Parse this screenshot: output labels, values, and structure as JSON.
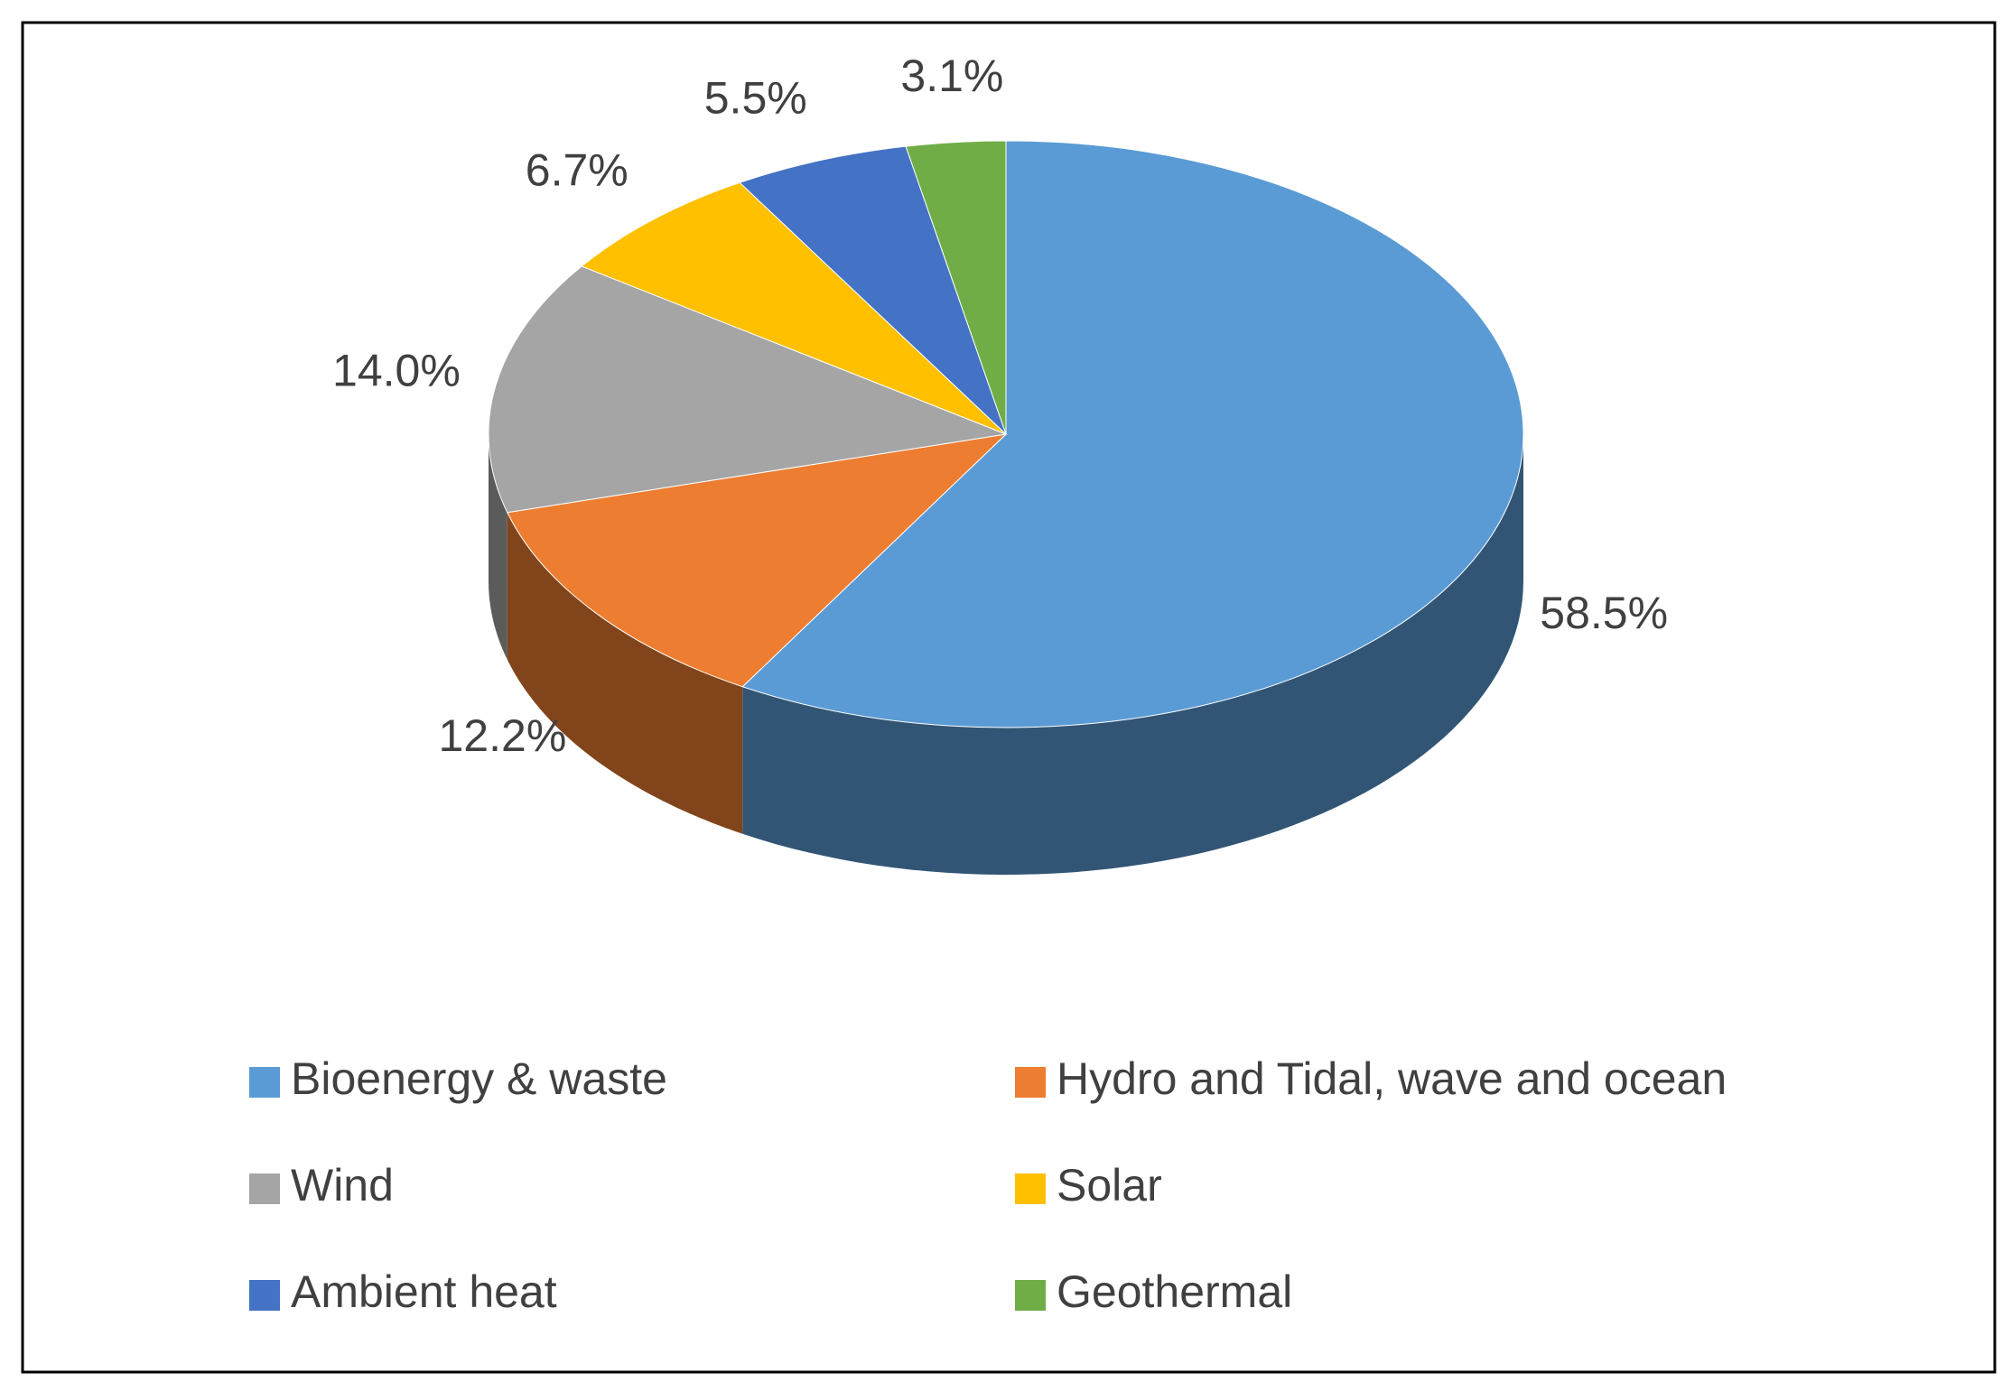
{
  "chart_data": {
    "type": "pie",
    "categories": [
      "Bioenergy & waste",
      "Hydro and Tidal, wave and ocean",
      "Wind",
      "Solar",
      "Ambient heat",
      "Geothermal"
    ],
    "values": [
      58.5,
      12.2,
      14.0,
      6.7,
      5.5,
      3.1
    ],
    "value_labels": [
      "58.5%",
      "12.2%",
      "14.0%",
      "6.7%",
      "5.5%",
      "3.1%"
    ],
    "colors": [
      "#5b9bd5",
      "#ed7d31",
      "#a5a5a5",
      "#ffc000",
      "#4472c4",
      "#70ad47"
    ],
    "legend": "bottom"
  }
}
